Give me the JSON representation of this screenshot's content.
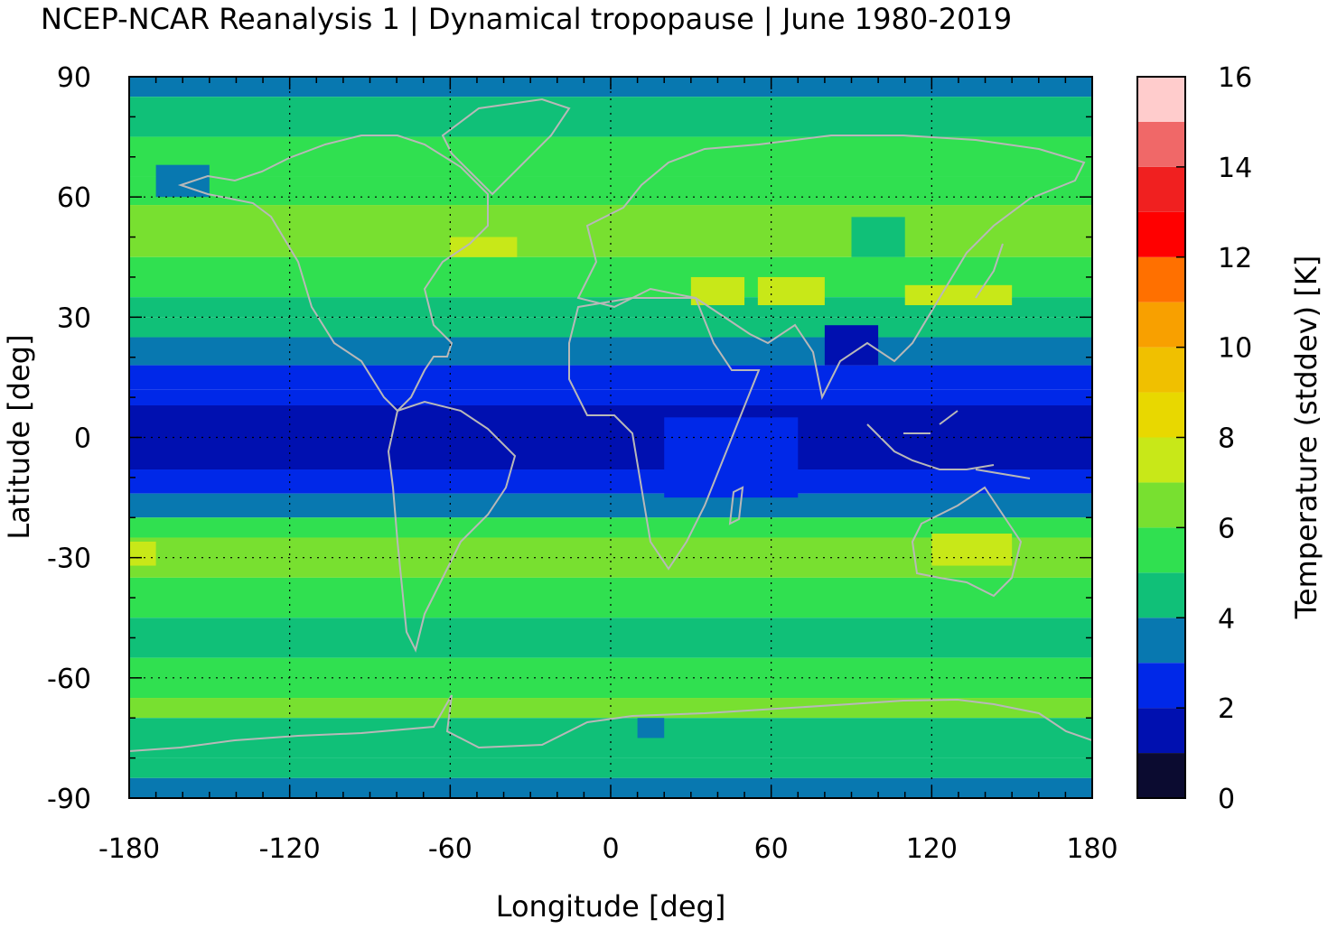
{
  "chart_data": {
    "type": "heatmap",
    "title": "NCEP-NCAR Reanalysis 1 | Dynamical tropopause | June 1980-2019",
    "xlabel": "Longitude [deg]",
    "ylabel": "Latitude [deg]",
    "colorbar_label": "Temperature (stddev) [K]",
    "xlim": [
      -180,
      180
    ],
    "ylim": [
      -90,
      90
    ],
    "xticks": [
      -180,
      -120,
      -60,
      0,
      60,
      120,
      180
    ],
    "xtick_labels": [
      "-180",
      "-120",
      "-60",
      "0",
      "60",
      "120",
      "180"
    ],
    "yticks": [
      90,
      60,
      30,
      0,
      -30,
      -60,
      -90
    ],
    "ytick_labels": [
      "90",
      "60",
      "30",
      "0",
      "-30",
      "-60",
      "-90"
    ],
    "colorbar_ticks": [
      16,
      14,
      12,
      10,
      8,
      6,
      4,
      2,
      0
    ],
    "colorbar_tick_labels": [
      "16",
      "14",
      "12",
      "10",
      "8",
      "6",
      "4",
      "2",
      "0"
    ],
    "colorbar_range": [
      0,
      16
    ],
    "color_levels": [
      {
        "from": 0,
        "to": 1,
        "color": "#0b0b30"
      },
      {
        "from": 1,
        "to": 2,
        "color": "#0010b0"
      },
      {
        "from": 2,
        "to": 3,
        "color": "#0028e8"
      },
      {
        "from": 3,
        "to": 4,
        "color": "#0878b0"
      },
      {
        "from": 4,
        "to": 5,
        "color": "#10c078"
      },
      {
        "from": 5,
        "to": 6,
        "color": "#30e050"
      },
      {
        "from": 6,
        "to": 7,
        "color": "#78e030"
      },
      {
        "from": 7,
        "to": 8,
        "color": "#c8e818"
      },
      {
        "from": 8,
        "to": 9,
        "color": "#e8d800"
      },
      {
        "from": 9,
        "to": 10,
        "color": "#f0c000"
      },
      {
        "from": 10,
        "to": 11,
        "color": "#f8a000"
      },
      {
        "from": 11,
        "to": 12,
        "color": "#ff7000"
      },
      {
        "from": 12,
        "to": 13,
        "color": "#ff0000"
      },
      {
        "from": 13,
        "to": 14,
        "color": "#f02020"
      },
      {
        "from": 14,
        "to": 15,
        "color": "#f06868"
      },
      {
        "from": 15,
        "to": 16,
        "color": "#ffcccc"
      }
    ],
    "grid": true,
    "coastline_color": "#b8b8b8",
    "latitude_bands": [
      {
        "lat_from": 85,
        "lat_to": 90,
        "value": 3.5
      },
      {
        "lat_from": 75,
        "lat_to": 85,
        "value": 4.5
      },
      {
        "lat_from": 65,
        "lat_to": 75,
        "value": 5.5
      },
      {
        "lat_from": 58,
        "lat_to": 65,
        "value": 5.5
      },
      {
        "lat_from": 45,
        "lat_to": 58,
        "value": 6.5
      },
      {
        "lat_from": 35,
        "lat_to": 45,
        "value": 5.5
      },
      {
        "lat_from": 30,
        "lat_to": 35,
        "value": 4.5
      },
      {
        "lat_from": 25,
        "lat_to": 30,
        "value": 4.5
      },
      {
        "lat_from": 18,
        "lat_to": 25,
        "value": 3.5
      },
      {
        "lat_from": 12,
        "lat_to": 18,
        "value": 2.5
      },
      {
        "lat_from": 8,
        "lat_to": 12,
        "value": 2.5
      },
      {
        "lat_from": -8,
        "lat_to": 8,
        "value": 1.5
      },
      {
        "lat_from": -14,
        "lat_to": -8,
        "value": 2.5
      },
      {
        "lat_from": -20,
        "lat_to": -14,
        "value": 3.5
      },
      {
        "lat_from": -25,
        "lat_to": -20,
        "value": 5.5
      },
      {
        "lat_from": -35,
        "lat_to": -25,
        "value": 6.5
      },
      {
        "lat_from": -45,
        "lat_to": -35,
        "value": 5.5
      },
      {
        "lat_from": -55,
        "lat_to": -45,
        "value": 4.5
      },
      {
        "lat_from": -65,
        "lat_to": -55,
        "value": 5.5
      },
      {
        "lat_from": -70,
        "lat_to": -65,
        "value": 6.5
      },
      {
        "lat_from": -80,
        "lat_to": -70,
        "value": 4.5
      },
      {
        "lat_from": -85,
        "lat_to": -80,
        "value": 4.5
      },
      {
        "lat_from": -90,
        "lat_to": -85,
        "value": 3.5
      }
    ],
    "regional_features": [
      {
        "lon_from": -60,
        "lon_to": -35,
        "lat_from": 45,
        "lat_to": 50,
        "value": 7.5
      },
      {
        "lon_from": 30,
        "lon_to": 50,
        "lat_from": 33,
        "lat_to": 40,
        "value": 7.5
      },
      {
        "lon_from": 55,
        "lon_to": 80,
        "lat_from": 33,
        "lat_to": 40,
        "value": 7.5
      },
      {
        "lon_from": 110,
        "lon_to": 150,
        "lat_from": 33,
        "lat_to": 38,
        "value": 7.5
      },
      {
        "lon_from": 120,
        "lon_to": 150,
        "lat_from": -32,
        "lat_to": -24,
        "value": 7.5
      },
      {
        "lon_from": -180,
        "lon_to": -170,
        "lat_from": -32,
        "lat_to": -26,
        "value": 7.5
      },
      {
        "lon_from": 80,
        "lon_to": 100,
        "lat_from": 18,
        "lat_to": 28,
        "value": 1.5
      },
      {
        "lon_from": 20,
        "lon_to": 70,
        "lat_from": -15,
        "lat_to": 5,
        "value": 2.5
      },
      {
        "lon_from": 90,
        "lon_to": 110,
        "lat_from": 45,
        "lat_to": 55,
        "value": 4.5
      },
      {
        "lon_from": 10,
        "lon_to": 20,
        "lat_from": -75,
        "lat_to": -70,
        "value": 3.5
      },
      {
        "lon_from": -170,
        "lon_to": -150,
        "lat_from": 60,
        "lat_to": 68,
        "value": 3.5
      }
    ]
  }
}
